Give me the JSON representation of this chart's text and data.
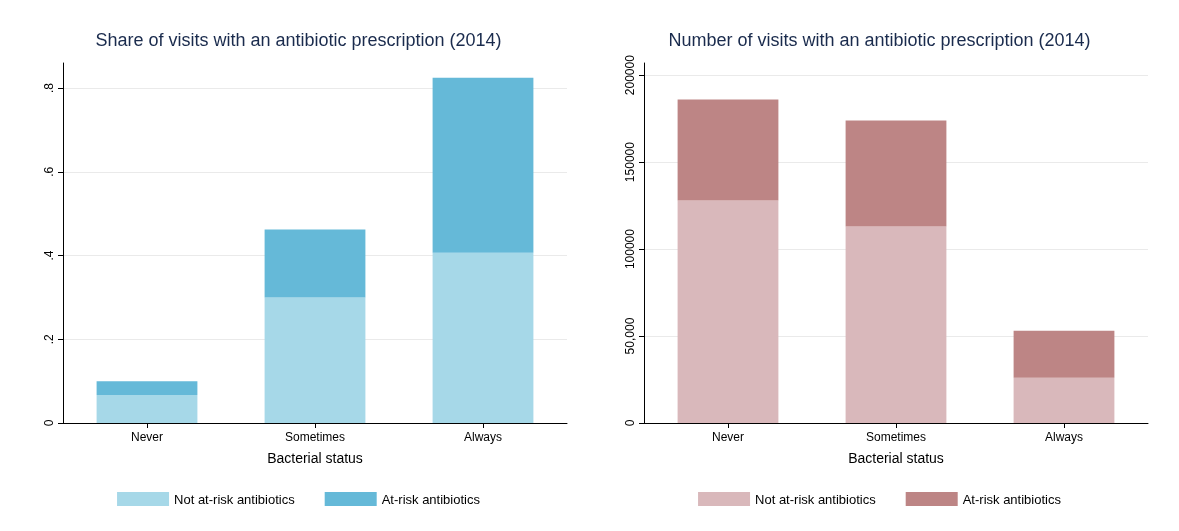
{
  "chart_data": [
    {
      "type": "bar",
      "title": "Share of visits with an antibiotic prescription (2014)",
      "xlabel": "Bacterial status",
      "categories": [
        "Never",
        "Sometimes",
        "Always"
      ],
      "stacked": true,
      "series": [
        {
          "name": "Not at-risk antibiotics",
          "color": "#a6d8e8",
          "values": [
            0.067,
            0.3,
            0.407
          ]
        },
        {
          "name": "At-risk antibiotics",
          "color": "#65b9d8",
          "values": [
            0.033,
            0.162,
            0.418
          ]
        }
      ],
      "ylim": [
        0,
        0.86
      ],
      "yticks": [
        0,
        {
          "value": 0.2,
          "label": ".2"
        },
        {
          "value": 0.4,
          "label": ".4"
        },
        {
          "value": 0.6,
          "label": ".6"
        },
        {
          "value": 0.8,
          "label": ".8"
        }
      ],
      "grid": "y",
      "legend": "bottom"
    },
    {
      "type": "bar",
      "title": "Number of visits with an antibiotic prescription (2014)",
      "xlabel": "Bacterial status",
      "categories": [
        "Never",
        "Sometimes",
        "Always"
      ],
      "stacked": true,
      "series": [
        {
          "name": "Not at-risk antibiotics",
          "color": "#d9b8bb",
          "values": [
            128000,
            113000,
            26000
          ]
        },
        {
          "name": "At-risk antibiotics",
          "color": "#bd8585",
          "values": [
            58000,
            61000,
            27000
          ]
        }
      ],
      "ylim": [
        0,
        207000
      ],
      "yticks": [
        0,
        {
          "value": 50000,
          "label": "50,000"
        },
        100000,
        150000,
        200000
      ],
      "grid": "y",
      "legend": "bottom"
    }
  ]
}
